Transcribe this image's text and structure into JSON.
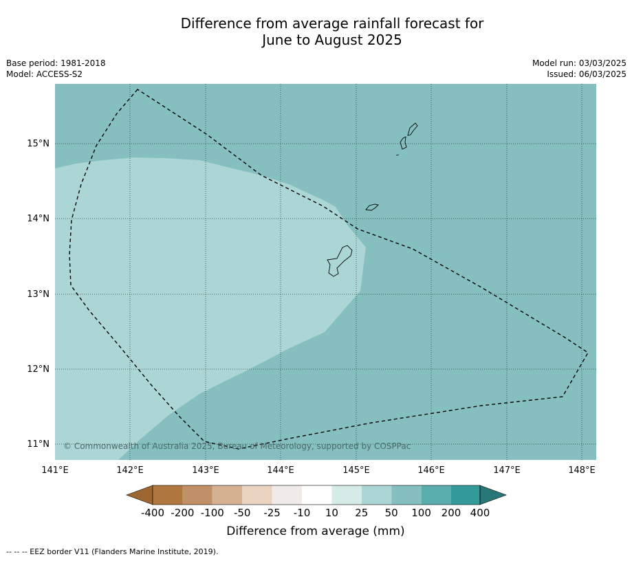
{
  "title": {
    "line1": "Difference from average rainfall forecast for",
    "line2": "June to August 2025"
  },
  "meta": {
    "base_period": "Base period: 1981-2018",
    "model": "Model: ACCESS-S2",
    "model_run": "Model run: 03/03/2025",
    "issued": "Issued: 06/03/2025"
  },
  "map": {
    "lon_labels": [
      "141°E",
      "142°E",
      "143°E",
      "144°E",
      "145°E",
      "146°E",
      "147°E",
      "148°E"
    ],
    "lat_labels": [
      "15°N",
      "14°N",
      "13°N",
      "12°N",
      "11°N"
    ],
    "copyright": "© Commonwealth of Australia 2025, Bureau of Meteorology, supported by COSPPac",
    "colors": {
      "cat_25_50": "#acd5d5",
      "cat_50_100": "#85bfbf"
    }
  },
  "colorbar": {
    "ticks": [
      "-400",
      "-200",
      "-100",
      "-50",
      "-25",
      "-10",
      "10",
      "25",
      "50",
      "100",
      "200",
      "400"
    ],
    "colors": [
      "#9e6633",
      "#b07840",
      "#c09066",
      "#d5b091",
      "#e8d2c0",
      "#f0ebe8",
      "#ffffff",
      "#d5ebe8",
      "#acd5d5",
      "#85bfbf",
      "#59adad",
      "#339999",
      "#287777"
    ],
    "label": "Difference from average (mm)"
  },
  "footnote": "--  --  -- EEZ border V11 (Flanders Marine Institute, 2019)."
}
